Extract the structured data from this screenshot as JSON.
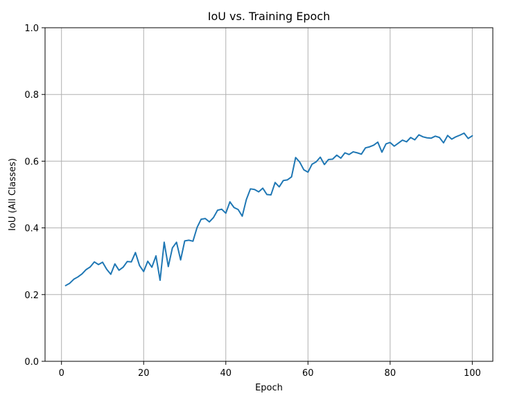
{
  "chart_data": {
    "type": "line",
    "title": "IoU vs. Training Epoch",
    "xlabel": "Epoch",
    "ylabel": "IoU (All Classes)",
    "xlim": [
      -4,
      105
    ],
    "ylim": [
      0.0,
      1.0
    ],
    "xticks": [
      0,
      20,
      40,
      60,
      80,
      100
    ],
    "yticks": [
      0.0,
      0.2,
      0.4,
      0.6,
      0.8,
      1.0
    ],
    "grid": true,
    "series": [
      {
        "color": "#1f77b4",
        "x": [
          1,
          2,
          3,
          4,
          5,
          6,
          7,
          8,
          9,
          10,
          11,
          12,
          13,
          14,
          15,
          16,
          17,
          18,
          19,
          20,
          21,
          22,
          23,
          24,
          25,
          26,
          27,
          28,
          29,
          30,
          31,
          32,
          33,
          34,
          35,
          36,
          37,
          38,
          39,
          40,
          41,
          42,
          43,
          44,
          45,
          46,
          47,
          48,
          49,
          50,
          51,
          52,
          53,
          54,
          55,
          56,
          57,
          58,
          59,
          60,
          61,
          62,
          63,
          64,
          65,
          66,
          67,
          68,
          69,
          70,
          71,
          72,
          73,
          74,
          75,
          76,
          77,
          78,
          79,
          80,
          81,
          82,
          83,
          84,
          85,
          86,
          87,
          88,
          89,
          90,
          91,
          92,
          93,
          94,
          95,
          96,
          97,
          98,
          99,
          100
        ],
        "values": [
          0.227,
          0.234,
          0.246,
          0.253,
          0.262,
          0.275,
          0.283,
          0.298,
          0.29,
          0.297,
          0.276,
          0.261,
          0.292,
          0.273,
          0.282,
          0.299,
          0.298,
          0.326,
          0.287,
          0.269,
          0.3,
          0.282,
          0.316,
          0.243,
          0.357,
          0.284,
          0.34,
          0.357,
          0.304,
          0.361,
          0.363,
          0.36,
          0.401,
          0.426,
          0.428,
          0.418,
          0.431,
          0.453,
          0.456,
          0.444,
          0.478,
          0.461,
          0.455,
          0.435,
          0.485,
          0.517,
          0.515,
          0.508,
          0.519,
          0.5,
          0.499,
          0.536,
          0.523,
          0.542,
          0.544,
          0.553,
          0.611,
          0.597,
          0.574,
          0.567,
          0.591,
          0.598,
          0.612,
          0.59,
          0.605,
          0.606,
          0.618,
          0.609,
          0.625,
          0.62,
          0.628,
          0.625,
          0.621,
          0.64,
          0.643,
          0.648,
          0.657,
          0.627,
          0.652,
          0.656,
          0.645,
          0.654,
          0.663,
          0.658,
          0.671,
          0.664,
          0.679,
          0.673,
          0.67,
          0.669,
          0.675,
          0.671,
          0.655,
          0.677,
          0.666,
          0.673,
          0.678,
          0.684,
          0.668,
          0.676
        ]
      }
    ]
  }
}
